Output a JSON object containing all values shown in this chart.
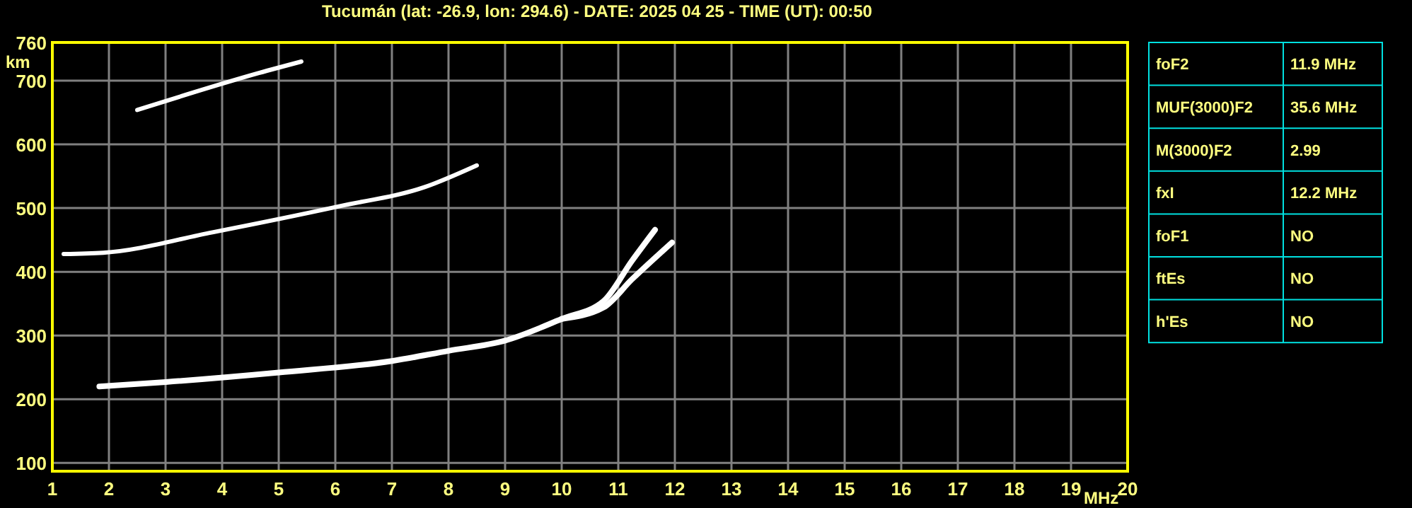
{
  "chart_data": [
    {
      "type": "line",
      "title": "Tucumán (lat: -26.9, lon: 294.6) - DATE: 2025 04 25 - TIME (UT): 00:50",
      "xlabel": "MHz",
      "ylabel": "km",
      "xlim": [
        1,
        20
      ],
      "ylim": [
        87,
        760
      ],
      "xticks": [
        1,
        2,
        3,
        4,
        5,
        6,
        7,
        8,
        9,
        10,
        11,
        12,
        13,
        14,
        15,
        16,
        17,
        18,
        19,
        20
      ],
      "yticks": [
        100,
        200,
        300,
        400,
        500,
        600,
        700,
        760
      ],
      "grid": true,
      "marker": "none",
      "line_style": "solid",
      "series": [
        {
          "color": "#ffffff",
          "x": [
            1.83,
            3,
            5,
            7,
            8,
            9,
            10,
            10.74,
            11.24,
            11.65
          ],
          "values": [
            220,
            227,
            242,
            260,
            276,
            292,
            326,
            354,
            417,
            466
          ]
        },
        {
          "color": "#ffffff",
          "x": [
            10,
            10.74,
            11.24,
            11.95
          ],
          "values": [
            326,
            344,
            388,
            446
          ]
        },
        {
          "color": "#ffffff",
          "x": [
            1.2,
            1.9,
            3.83,
            6.08,
            7.58,
            8.5
          ],
          "values": [
            428,
            430,
            462,
            503,
            533,
            567
          ]
        },
        {
          "color": "#ffffff",
          "x": [
            2.5,
            3.4,
            4.65,
            5.4
          ],
          "values": [
            654,
            679,
            712,
            730
          ]
        }
      ]
    },
    {
      "type": "other",
      "annotations": [
        "foF2",
        "11.9 MHz",
        "MUF(3000)F2",
        "35.6 MHz",
        "M(3000)F2",
        "2.99",
        "fxI",
        "12.2 MHz",
        "foF1",
        "NO",
        "ftEs",
        "NO",
        "h'Es",
        "NO"
      ]
    }
  ]
}
